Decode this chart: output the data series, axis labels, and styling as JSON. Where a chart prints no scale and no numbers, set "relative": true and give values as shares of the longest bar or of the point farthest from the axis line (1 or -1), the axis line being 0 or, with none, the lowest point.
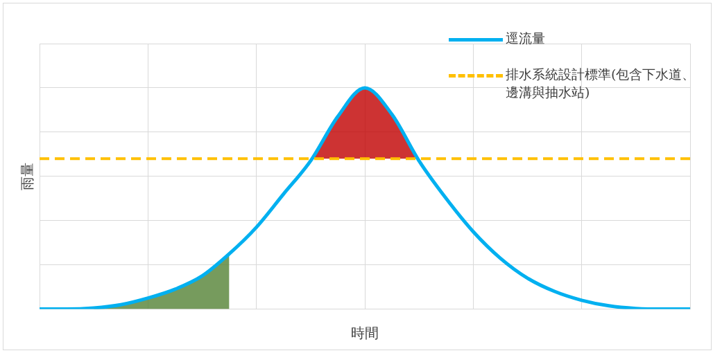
{
  "chart_data": {
    "type": "line",
    "relative": true,
    "xlabel": "時間",
    "ylabel": "雨量",
    "grid": true,
    "legend": "top right",
    "marker": "none",
    "categories": [
      null,
      null,
      null,
      null,
      null,
      null,
      null,
      null,
      null,
      null,
      null,
      null,
      null,
      null,
      null,
      null,
      null,
      null,
      null,
      null,
      null,
      null,
      null,
      null,
      null
    ],
    "series": [
      {
        "type": "area",
        "color": "#548235",
        "values": [
          null,
          null,
          0.005,
          0.02,
          0.05,
          0.09,
          0.15,
          0.25,
          null,
          null,
          null,
          null,
          null,
          null,
          null,
          null,
          null,
          null,
          null,
          null,
          null,
          null,
          null,
          null,
          null
        ]
      },
      {
        "type": "area",
        "color": "#c00000",
        "values": [
          null,
          null,
          null,
          null,
          null,
          null,
          null,
          null,
          null,
          null,
          0.68,
          0.87,
          1,
          0.88,
          0.68,
          null,
          null,
          null,
          null,
          null,
          null,
          null,
          null,
          null,
          null
        ]
      },
      {
        "name": "逕流量",
        "color": "#00b0f0",
        "line_style": "solid",
        "values": [
          0,
          0,
          0.005,
          0.02,
          0.05,
          0.09,
          0.15,
          0.25,
          0.37,
          0.52,
          0.67,
          0.87,
          1,
          0.88,
          0.67,
          0.5,
          0.35,
          0.23,
          0.14,
          0.08,
          0.04,
          0.015,
          0.003,
          0,
          0
        ]
      }
    ],
    "ref_lines": [
      {
        "axis": "y",
        "value": 0.68,
        "label": "排水系統設計標準(包含下水道、邊溝與抽水站)",
        "color": "#ffc000",
        "line_style": "dashed"
      }
    ]
  }
}
